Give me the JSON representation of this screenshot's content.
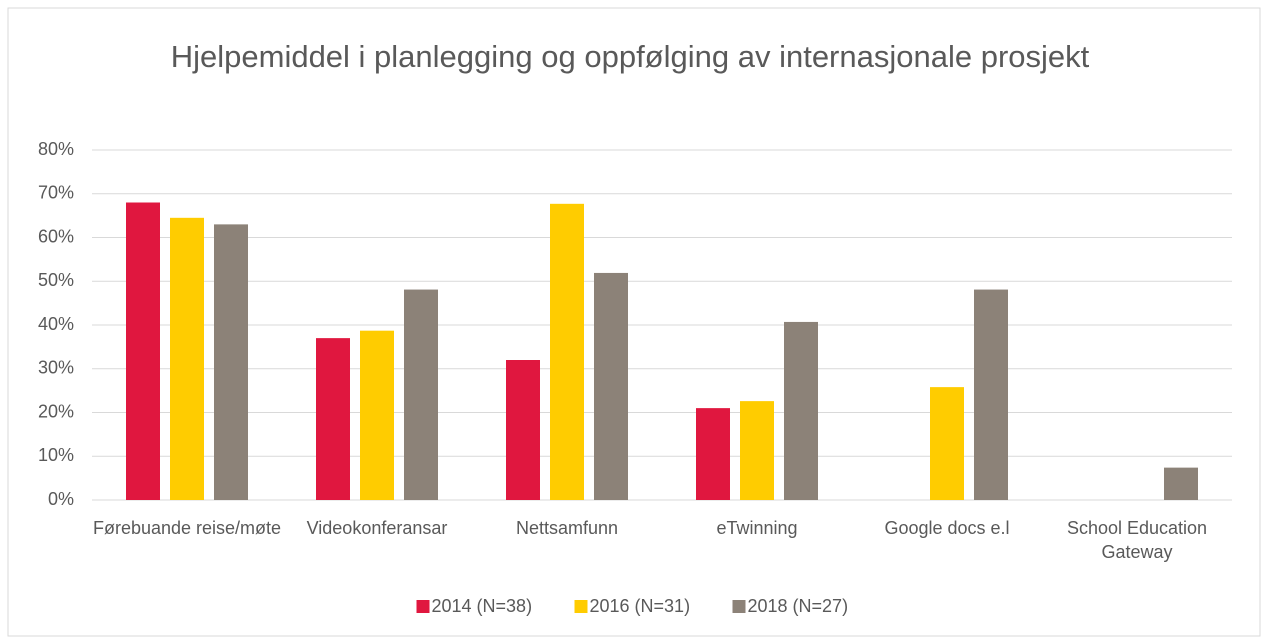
{
  "chart_data": {
    "type": "bar",
    "title": "Hjelpemiddel i planlegging og oppfølging av internasjonale prosjekt",
    "categories": [
      "Førebuande reise/møte",
      "Videokonferansar",
      "Nettsamfunn",
      "eTwinning",
      "Google docs e.l",
      "School Education Gateway"
    ],
    "series": [
      {
        "name": "2014 (N=38)",
        "color": "#e0173f",
        "values": [
          68,
          37,
          32,
          21,
          null,
          null
        ]
      },
      {
        "name": "2016 (N=31)",
        "color": "#ffcc00",
        "values": [
          64.5,
          38.7,
          67.7,
          22.6,
          25.8,
          null
        ]
      },
      {
        "name": "2018 (N=27)",
        "color": "#8c8278",
        "values": [
          63,
          48.1,
          51.9,
          40.7,
          48.1,
          7.4
        ]
      }
    ],
    "ylim": [
      0,
      80
    ],
    "yticks": [
      {
        "value": 0,
        "label": "0%"
      },
      {
        "value": 10,
        "label": "10%"
      },
      {
        "value": 20,
        "label": "20%"
      },
      {
        "value": 30,
        "label": "30%"
      },
      {
        "value": 40,
        "label": "40%"
      },
      {
        "value": 50,
        "label": "50%"
      },
      {
        "value": 60,
        "label": "60%"
      },
      {
        "value": 70,
        "label": "70%"
      },
      {
        "value": 80,
        "label": "80%"
      }
    ],
    "grid": true,
    "legend": "bottom"
  }
}
